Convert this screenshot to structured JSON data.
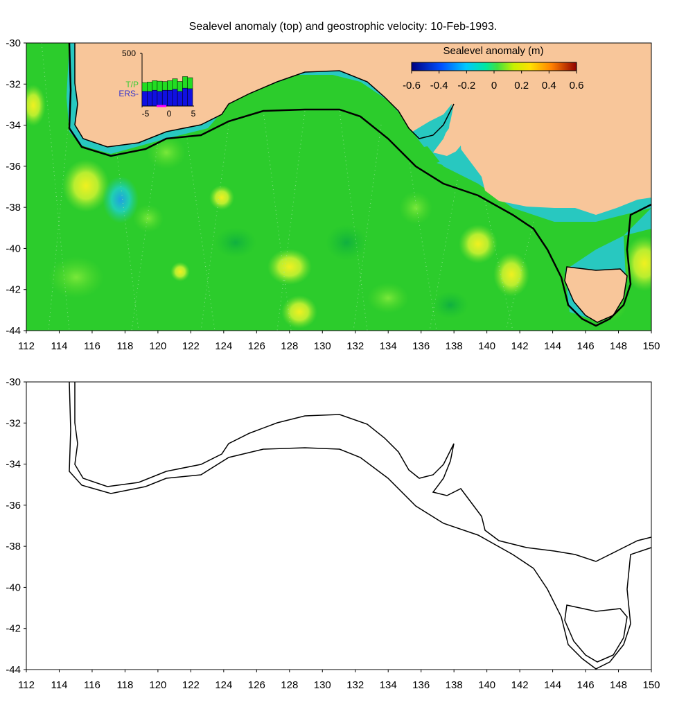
{
  "title": "Sealevel anomaly (top) and geostrophic velocity: 10-Feb-1993.",
  "x_ticks": [
    "112",
    "114",
    "116",
    "118",
    "120",
    "122",
    "124",
    "126",
    "128",
    "130",
    "132",
    "134",
    "136",
    "138",
    "140",
    "142",
    "144",
    "146",
    "148",
    "150"
  ],
  "y_ticks": [
    "-30",
    "-32",
    "-34",
    "-36",
    "-38",
    "-40",
    "-42",
    "-44"
  ],
  "colorbar": {
    "label": "Sealevel anomaly (m)",
    "ticks": [
      "-0.6",
      "-0.4",
      "-0.2",
      "0",
      "0.2",
      "0.4",
      "0.6"
    ],
    "range": [
      -0.6,
      0.6
    ]
  },
  "inset": {
    "ymax_label": "500",
    "series": [
      {
        "name": "T/P",
        "color": "#33cc33"
      },
      {
        "name": "ERS-",
        "color": "#3333cc"
      }
    ],
    "x_ticks": [
      "-5",
      "0",
      "5"
    ]
  },
  "colors": {
    "land": "#f8c69a",
    "ocean": "#22cc22",
    "shelf": "#22c8c0",
    "coast_line": "#000000"
  },
  "map_extent": {
    "lon": [
      112,
      150
    ],
    "lat": [
      -44,
      -30
    ]
  }
}
